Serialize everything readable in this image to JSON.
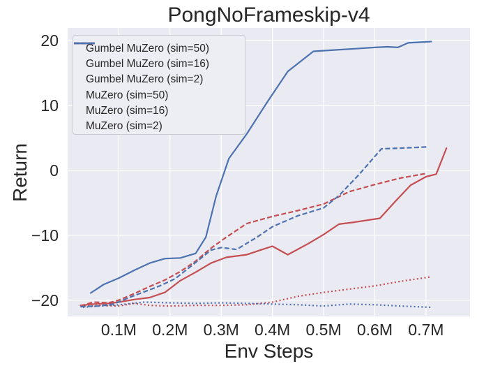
{
  "figure": {
    "title": "PongNoFrameskip-v4",
    "xlabel": "Env Steps",
    "ylabel": "Return"
  },
  "chart_data": {
    "type": "line",
    "title": "PongNoFrameskip-v4",
    "xlabel": "Env Steps",
    "ylabel": "Return",
    "x_unit": "millions of env steps",
    "xlim": [
      0,
      0.786
    ],
    "ylim": [
      -22.5,
      21.9
    ],
    "grid": true,
    "legend_position": "upper left",
    "colors": {
      "gumbel_red": "#c44e52",
      "muzero_blue": "#4c72b0",
      "plot_bg": "#eaeaf2",
      "grid": "#ffffff",
      "text": "#262626"
    },
    "x_ticks": [
      {
        "value": 0.1,
        "label": "0.1M"
      },
      {
        "value": 0.2,
        "label": "0.2M"
      },
      {
        "value": 0.3,
        "label": "0.3M"
      },
      {
        "value": 0.4,
        "label": "0.4M"
      },
      {
        "value": 0.5,
        "label": "0.5M"
      },
      {
        "value": 0.6,
        "label": "0.6M"
      },
      {
        "value": 0.7,
        "label": "0.7M"
      }
    ],
    "y_ticks": [
      {
        "value": 20,
        "label": "20"
      },
      {
        "value": 10,
        "label": "10"
      },
      {
        "value": 0,
        "label": "0"
      },
      {
        "value": -10,
        "label": "−10"
      },
      {
        "value": -20,
        "label": "−20"
      }
    ],
    "series": [
      {
        "name": "Gumbel MuZero (sim=50)",
        "color": "#c44e52",
        "style": "solid",
        "x": [
          0.025,
          0.05,
          0.08,
          0.1,
          0.13,
          0.16,
          0.19,
          0.22,
          0.25,
          0.28,
          0.31,
          0.35,
          0.38,
          0.4,
          0.43,
          0.47,
          0.5,
          0.53,
          0.56,
          0.61,
          0.64,
          0.67,
          0.7,
          0.72,
          0.74
        ],
        "y": [
          -20.8,
          -20.6,
          -20.5,
          -20.3,
          -19.9,
          -19.6,
          -18.8,
          -17.0,
          -15.7,
          -14.3,
          -13.4,
          -13.0,
          -12.2,
          -11.7,
          -13.0,
          -11.3,
          -9.9,
          -8.3,
          -8.0,
          -7.4,
          -4.8,
          -2.3,
          -1.0,
          -0.6,
          3.4
        ]
      },
      {
        "name": "Gumbel MuZero (sim=16)",
        "color": "#c44e52",
        "style": "dashed",
        "x": [
          0.025,
          0.05,
          0.08,
          0.1,
          0.13,
          0.16,
          0.19,
          0.22,
          0.25,
          0.28,
          0.31,
          0.35,
          0.4,
          0.45,
          0.5,
          0.55,
          0.6,
          0.65,
          0.7
        ],
        "y": [
          -20.9,
          -20.3,
          -20.4,
          -20.0,
          -19.0,
          -17.9,
          -16.9,
          -15.6,
          -14.0,
          -12.0,
          -10.3,
          -8.2,
          -7.1,
          -6.2,
          -5.2,
          -3.3,
          -2.2,
          -1.2,
          -0.5
        ]
      },
      {
        "name": "Gumbel MuZero (sim=2)",
        "color": "#c44e52",
        "style": "dotted",
        "x": [
          0.025,
          0.06,
          0.1,
          0.13,
          0.16,
          0.2,
          0.25,
          0.3,
          0.35,
          0.4,
          0.45,
          0.5,
          0.55,
          0.6,
          0.65,
          0.71
        ],
        "y": [
          -21.0,
          -20.8,
          -20.9,
          -20.5,
          -20.8,
          -20.9,
          -20.8,
          -20.8,
          -20.7,
          -20.3,
          -19.4,
          -18.8,
          -18.3,
          -17.8,
          -17.1,
          -16.4
        ]
      },
      {
        "name": "MuZero (sim=50)",
        "color": "#4c72b0",
        "style": "solid",
        "x": [
          0.045,
          0.07,
          0.1,
          0.13,
          0.16,
          0.19,
          0.22,
          0.25,
          0.27,
          0.29,
          0.315,
          0.35,
          0.39,
          0.43,
          0.48,
          0.52,
          0.56,
          0.6,
          0.625,
          0.645,
          0.665,
          0.71
        ],
        "y": [
          -18.9,
          -17.6,
          -16.6,
          -15.4,
          -14.3,
          -13.6,
          -13.5,
          -12.8,
          -10.3,
          -4.0,
          1.8,
          5.6,
          10.5,
          15.2,
          18.3,
          18.5,
          18.7,
          18.9,
          19.0,
          18.9,
          19.6,
          19.8
        ]
      },
      {
        "name": "MuZero (sim=16)",
        "color": "#4c72b0",
        "style": "dashed",
        "x": [
          0.025,
          0.06,
          0.09,
          0.12,
          0.15,
          0.18,
          0.21,
          0.25,
          0.28,
          0.3,
          0.33,
          0.37,
          0.4,
          0.45,
          0.5,
          0.53,
          0.57,
          0.613,
          0.65,
          0.705
        ],
        "y": [
          -21.0,
          -20.9,
          -20.6,
          -19.6,
          -18.7,
          -17.8,
          -16.7,
          -14.2,
          -12.3,
          -11.9,
          -12.2,
          -10.3,
          -8.7,
          -7.0,
          -5.8,
          -3.9,
          -0.6,
          3.3,
          3.4,
          3.6
        ]
      },
      {
        "name": "MuZero (sim=2)",
        "color": "#4c72b0",
        "style": "dotted",
        "x": [
          0.03,
          0.06,
          0.1,
          0.15,
          0.2,
          0.25,
          0.3,
          0.35,
          0.4,
          0.45,
          0.5,
          0.55,
          0.6,
          0.65,
          0.71
        ],
        "y": [
          -21.1,
          -20.9,
          -20.7,
          -20.3,
          -20.4,
          -20.5,
          -20.4,
          -20.5,
          -20.6,
          -20.7,
          -20.9,
          -20.6,
          -20.7,
          -20.9,
          -21.1
        ]
      }
    ]
  }
}
